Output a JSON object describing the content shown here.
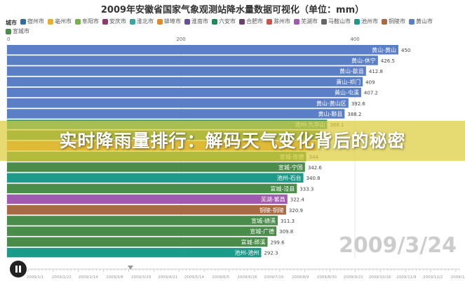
{
  "chart_data": {
    "type": "bar",
    "title": "2009年安徽省国家气象观测站降水量数据可视化（单位：mm）",
    "legend_title": "城市",
    "legend": [
      {
        "name": "宿州市",
        "color": "#2f6d9a"
      },
      {
        "name": "亳州市",
        "color": "#e6b12a"
      },
      {
        "name": "阜阳市",
        "color": "#78b04f"
      },
      {
        "name": "安庆市",
        "color": "#8e3a6e"
      },
      {
        "name": "淮北市",
        "color": "#3aa6a0"
      },
      {
        "name": "蚌埠市",
        "color": "#e08a2a"
      },
      {
        "name": "淮南市",
        "color": "#6a4f9a"
      },
      {
        "name": "六安市",
        "color": "#1f8a5a"
      },
      {
        "name": "合肥市",
        "color": "#6b3f70"
      },
      {
        "name": "滁州市",
        "color": "#c9564a"
      },
      {
        "name": "芜湖市",
        "color": "#a05bb0"
      },
      {
        "name": "马鞍山市",
        "color": "#666666"
      },
      {
        "name": "池州市",
        "color": "#1e9a8a"
      },
      {
        "name": "铜陵市",
        "color": "#a86a44"
      },
      {
        "name": "黄山市",
        "color": "#5b7fc7"
      },
      {
        "name": "宣城市",
        "color": "#4a8c4a"
      }
    ],
    "xlim": [
      0,
      500
    ],
    "x_ticks": [
      0,
      200,
      400
    ],
    "legend_position": "top",
    "grid": true,
    "bars": [
      {
        "label": "黄山-黄山",
        "value": 450,
        "city": "黄山市"
      },
      {
        "label": "黄山-休宁",
        "value": 426.5,
        "city": "黄山市"
      },
      {
        "label": "黄山-歙县",
        "value": 412.8,
        "city": "黄山市"
      },
      {
        "label": "黄山-祁门",
        "value": 409,
        "city": "黄山市"
      },
      {
        "label": "黄山-屯溪",
        "value": 407.2,
        "city": "黄山市"
      },
      {
        "label": "黄山-黄山区",
        "value": 392.6,
        "city": "黄山市"
      },
      {
        "label": "黄山-黟县",
        "value": 388.2,
        "city": "黄山市"
      },
      {
        "label": "池州-九华山",
        "value": 368.1,
        "city": "池州市"
      },
      {
        "label": "",
        "value": 360,
        "city": "宣城市"
      },
      {
        "label": "",
        "value": 356,
        "city": "蚌埠市"
      },
      {
        "label": "宣城-旌德",
        "value": 344,
        "city": "宣城市"
      },
      {
        "label": "宣城-宁国",
        "value": 342.6,
        "city": "宣城市"
      },
      {
        "label": "池州-石台",
        "value": 340.8,
        "city": "池州市"
      },
      {
        "label": "宣城-泾县",
        "value": 333.3,
        "city": "宣城市"
      },
      {
        "label": "芜湖-繁昌",
        "value": 322.4,
        "city": "芜湖市"
      },
      {
        "label": "铜陵-铜陵",
        "value": 320.9,
        "city": "铜陵市"
      },
      {
        "label": "宣城-绩溪",
        "value": 311.3,
        "city": "宣城市"
      },
      {
        "label": "宣城-广德",
        "value": 309.8,
        "city": "宣城市"
      },
      {
        "label": "宣城-郎溪",
        "value": 299.6,
        "city": "宣城市"
      },
      {
        "label": "池州-池州",
        "value": 292.3,
        "city": "池州市"
      }
    ],
    "current_date": "2009/3/24"
  },
  "banner": "实时降雨量排行：解码天气变化背后的秘密",
  "timeline": {
    "playing": true,
    "progress_date": "2009/3/24",
    "labels": [
      "2009/1/1",
      "2009/1/22",
      "2009/2/14",
      "2009/3/8",
      "2009/3/29",
      "2009/4/21",
      "2009/5/14",
      "2009/6/5",
      "2009/6/26",
      "2009/7/19",
      "2009/8/9",
      "2009/8/30",
      "2009/9/22",
      "2009/10/16",
      "2009/11/9",
      "2009/12/2",
      "2009/12/"
    ]
  }
}
